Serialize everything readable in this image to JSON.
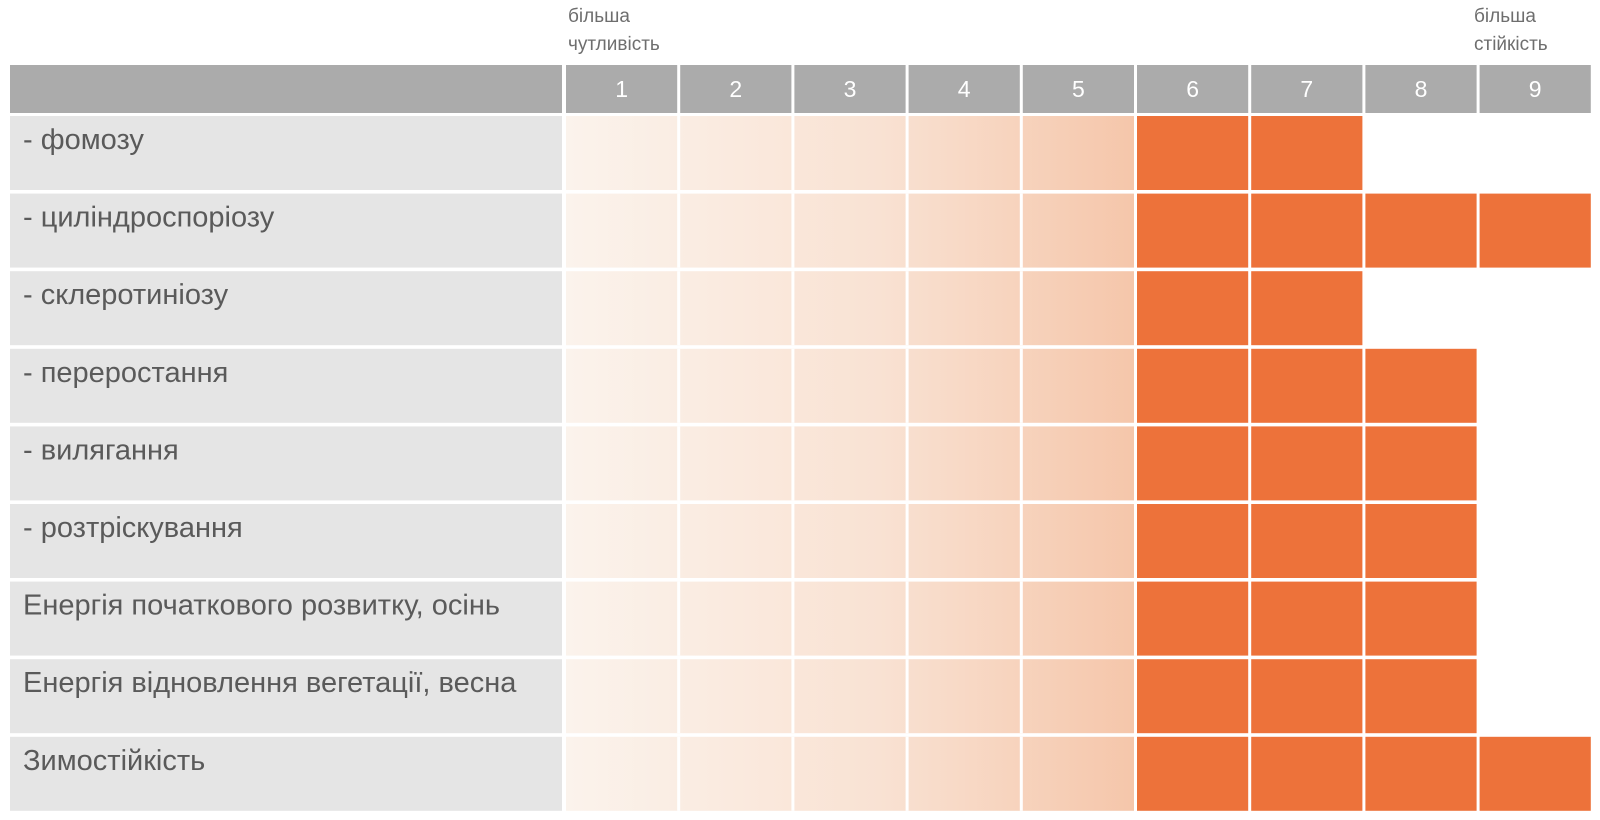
{
  "header_notes": {
    "left_line1": "більша",
    "left_line2": "чутливість",
    "right_line1": "більша",
    "right_line2": "стійкість"
  },
  "colors": {
    "header_bg": "#ababab",
    "label_bg": "#e5e5e5",
    "filled": "#ed723a",
    "gradient_start": "#fbf3ec",
    "gradient_end": "#f5c6aa",
    "label_text": "#5a5a5a"
  },
  "chart_data": {
    "type": "table",
    "scale": [
      "1",
      "2",
      "3",
      "4",
      "5",
      "6",
      "7",
      "8",
      "9"
    ],
    "gradient_columns": 5,
    "rows": [
      {
        "label": "- фомозу",
        "value": 7
      },
      {
        "label": "- циліндроспоріозу",
        "value": 9
      },
      {
        "label": "- склеротиніозу",
        "value": 7
      },
      {
        "label": "- переростання",
        "value": 8
      },
      {
        "label": "- вилягання",
        "value": 8
      },
      {
        "label": "- розтріскування",
        "value": 8
      },
      {
        "label": "Енергія початкового розвитку, осінь",
        "value": 8
      },
      {
        "label": "Енергія відновлення вегетації, весна",
        "value": 8
      },
      {
        "label": "Зимостійкість",
        "value": 9
      }
    ]
  }
}
